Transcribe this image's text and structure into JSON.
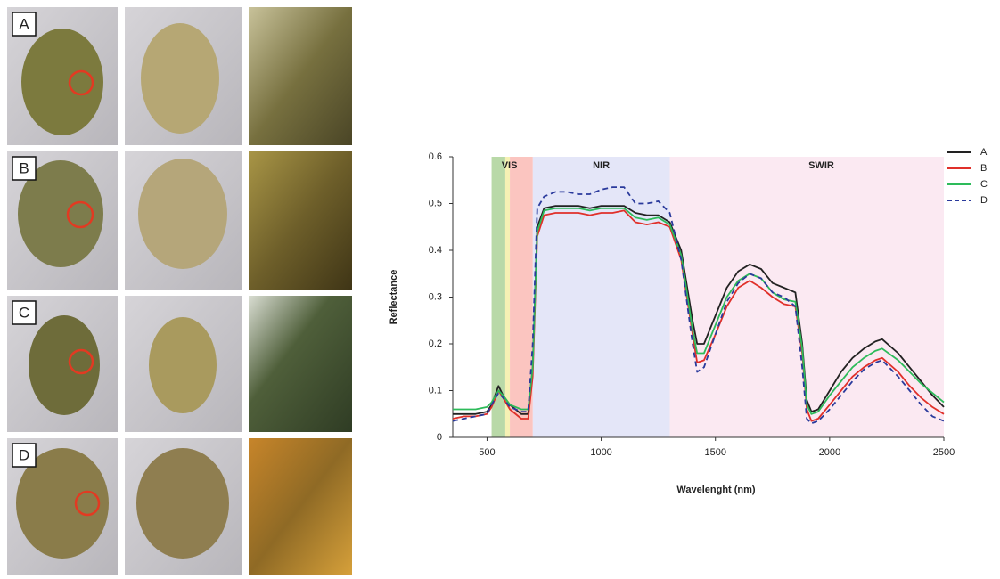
{
  "panel_labels": [
    "A",
    "B",
    "C",
    "D"
  ],
  "chart_data": {
    "type": "line",
    "xlabel": "Wavelenght (nm)",
    "ylabel": "Reflectance",
    "xlim": [
      350,
      2500
    ],
    "ylim": [
      0,
      0.6
    ],
    "xticks": [
      500,
      1000,
      1500,
      2000,
      2500
    ],
    "yticks": [
      0,
      0.1,
      0.2,
      0.3,
      0.4,
      0.5,
      0.6
    ],
    "legend": "outside-top-right",
    "regions": [
      {
        "label": "VIS",
        "start": 520,
        "end": 700,
        "color": "#fdecea"
      },
      {
        "label": "NIR",
        "start": 700,
        "end": 1300,
        "color": "#e4e6f8"
      },
      {
        "label": "SWIR",
        "start": 1300,
        "end": 2500,
        "color": "#fbe9f2"
      }
    ],
    "bands": [
      {
        "start": 520,
        "end": 580,
        "color": "#b9d9a8"
      },
      {
        "start": 580,
        "end": 600,
        "color": "#f6f1b4"
      },
      {
        "start": 600,
        "end": 700,
        "color": "#fbc5c0"
      }
    ],
    "x": [
      350,
      400,
      450,
      500,
      520,
      550,
      570,
      600,
      650,
      680,
      700,
      720,
      750,
      800,
      850,
      900,
      950,
      1000,
      1050,
      1100,
      1150,
      1200,
      1250,
      1300,
      1350,
      1400,
      1420,
      1450,
      1500,
      1550,
      1600,
      1650,
      1700,
      1750,
      1800,
      1850,
      1880,
      1900,
      1920,
      1950,
      2000,
      2050,
      2100,
      2150,
      2200,
      2230,
      2300,
      2350,
      2400,
      2450,
      2500
    ],
    "series": [
      {
        "name": "A",
        "color": "#222222",
        "dashed": false,
        "values": [
          0.05,
          0.05,
          0.05,
          0.055,
          0.07,
          0.11,
          0.09,
          0.07,
          0.05,
          0.05,
          0.15,
          0.45,
          0.49,
          0.495,
          0.495,
          0.495,
          0.49,
          0.495,
          0.495,
          0.495,
          0.48,
          0.475,
          0.475,
          0.46,
          0.4,
          0.25,
          0.2,
          0.2,
          0.26,
          0.32,
          0.355,
          0.37,
          0.36,
          0.33,
          0.32,
          0.31,
          0.2,
          0.08,
          0.055,
          0.06,
          0.1,
          0.14,
          0.17,
          0.19,
          0.205,
          0.21,
          0.18,
          0.15,
          0.12,
          0.09,
          0.065
        ]
      },
      {
        "name": "B",
        "color": "#e0302a",
        "dashed": false,
        "values": [
          0.04,
          0.045,
          0.045,
          0.05,
          0.065,
          0.1,
          0.085,
          0.06,
          0.04,
          0.04,
          0.13,
          0.43,
          0.475,
          0.48,
          0.48,
          0.48,
          0.475,
          0.48,
          0.48,
          0.485,
          0.46,
          0.455,
          0.46,
          0.45,
          0.38,
          0.22,
          0.16,
          0.165,
          0.22,
          0.28,
          0.32,
          0.335,
          0.32,
          0.3,
          0.285,
          0.28,
          0.18,
          0.06,
          0.035,
          0.04,
          0.07,
          0.1,
          0.13,
          0.15,
          0.165,
          0.17,
          0.14,
          0.11,
          0.085,
          0.065,
          0.05
        ]
      },
      {
        "name": "C",
        "color": "#2dbb5a",
        "dashed": false,
        "values": [
          0.06,
          0.06,
          0.06,
          0.065,
          0.075,
          0.1,
          0.09,
          0.07,
          0.06,
          0.06,
          0.15,
          0.44,
          0.485,
          0.49,
          0.49,
          0.49,
          0.485,
          0.49,
          0.49,
          0.49,
          0.47,
          0.465,
          0.47,
          0.455,
          0.39,
          0.23,
          0.18,
          0.18,
          0.24,
          0.3,
          0.335,
          0.35,
          0.34,
          0.31,
          0.295,
          0.29,
          0.19,
          0.07,
          0.05,
          0.055,
          0.09,
          0.12,
          0.15,
          0.17,
          0.185,
          0.19,
          0.165,
          0.14,
          0.115,
          0.095,
          0.075
        ]
      },
      {
        "name": "D",
        "color": "#2a3a9c",
        "dashed": true,
        "values": [
          0.035,
          0.04,
          0.045,
          0.05,
          0.07,
          0.095,
          0.085,
          0.065,
          0.055,
          0.055,
          0.2,
          0.49,
          0.515,
          0.525,
          0.525,
          0.52,
          0.52,
          0.53,
          0.535,
          0.535,
          0.5,
          0.5,
          0.505,
          0.48,
          0.38,
          0.2,
          0.14,
          0.15,
          0.22,
          0.29,
          0.33,
          0.35,
          0.34,
          0.31,
          0.3,
          0.28,
          0.15,
          0.04,
          0.03,
          0.035,
          0.06,
          0.09,
          0.12,
          0.145,
          0.16,
          0.165,
          0.13,
          0.1,
          0.07,
          0.045,
          0.035
        ]
      }
    ]
  }
}
